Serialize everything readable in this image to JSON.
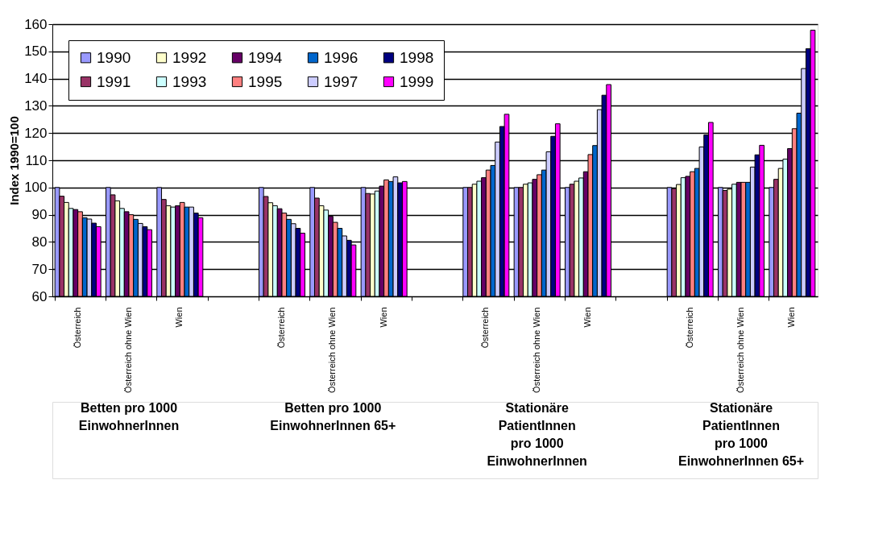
{
  "chart_data": {
    "type": "bar",
    "ylabel": "Index 1990=100",
    "categories": [
      "Österreich",
      "Österreich ohne Wien",
      "Wien",
      null,
      "Österreich",
      "Österreich ohne Wien",
      "Wien",
      null,
      "Österreich",
      "Österreich ohne Wien",
      "Wien",
      null,
      "Österreich",
      "Österreich ohne Wien",
      "Wien"
    ],
    "series": [
      {
        "name": "1990",
        "color": "#9999ff",
        "values": [
          100,
          100,
          100,
          null,
          100,
          100,
          100,
          null,
          100,
          100,
          100,
          null,
          100,
          100,
          100
        ]
      },
      {
        "name": "1991",
        "color": "#993366",
        "values": [
          96.8,
          97.3,
          95.6,
          null,
          96.7,
          96.1,
          97.8,
          null,
          100,
          100,
          101.2,
          null,
          99.6,
          98.9,
          103
        ]
      },
      {
        "name": "1992",
        "color": "#ffffcc",
        "values": [
          94.5,
          95.1,
          93.3,
          null,
          94.4,
          93.3,
          97.6,
          null,
          101.2,
          101.2,
          102.3,
          null,
          101.1,
          99.4,
          107
        ]
      },
      {
        "name": "1993",
        "color": "#ccffff",
        "values": [
          92.3,
          92.3,
          92.8,
          null,
          93.3,
          91.7,
          98.7,
          null,
          102.3,
          101.7,
          103.5,
          null,
          103.6,
          101.2,
          110.4
        ]
      },
      {
        "name": "1994",
        "color": "#660066",
        "values": [
          91.9,
          91.1,
          93.3,
          null,
          92.2,
          89.4,
          100.5,
          null,
          103.6,
          103,
          105.8,
          null,
          104.1,
          101.9,
          114.3
        ]
      },
      {
        "name": "1995",
        "color": "#ff8080",
        "values": [
          91.1,
          90,
          94.5,
          null,
          90.6,
          87.2,
          102.8,
          null,
          106.4,
          104.7,
          112.1,
          null,
          105.8,
          101.9,
          121.6
        ]
      },
      {
        "name": "1996",
        "color": "#0066cc",
        "values": [
          88.9,
          88.3,
          92.8,
          null,
          88.3,
          85,
          102.2,
          null,
          108.1,
          106.4,
          115.4,
          null,
          107,
          101.9,
          127.3
        ]
      },
      {
        "name": "1997",
        "color": "#ccccff",
        "values": [
          88.4,
          86.8,
          92.8,
          null,
          86.7,
          82.2,
          103.9,
          null,
          116.7,
          113.1,
          128.6,
          null,
          114.9,
          107.5,
          143.7
        ]
      },
      {
        "name": "1998",
        "color": "#000080",
        "values": [
          86.9,
          85.6,
          90.6,
          null,
          85,
          80.6,
          101.7,
          null,
          122.4,
          118.8,
          133.9,
          null,
          119.3,
          112,
          151
        ]
      },
      {
        "name": "1999",
        "color": "#ff00ff",
        "values": [
          85.6,
          84.5,
          88.9,
          null,
          83.2,
          78.9,
          102.2,
          null,
          126.9,
          123.4,
          137.8,
          null,
          123.9,
          115.5,
          157.8
        ]
      }
    ],
    "ylim": [
      60,
      160
    ],
    "yticks": [
      60,
      70,
      80,
      90,
      100,
      110,
      120,
      130,
      140,
      150,
      160
    ],
    "grid": "y",
    "legend": "top left",
    "annotations": [
      "Betten pro 1000\nEinwohnerInnen",
      "Betten pro 1000\nEinwohnerInnen 65+",
      "Stationäre\nPatientInnen\npro 1000\nEinwohnerInnen",
      "Stationäre\nPatientInnen\npro 1000\nEinwohnerInnen 65+"
    ]
  }
}
